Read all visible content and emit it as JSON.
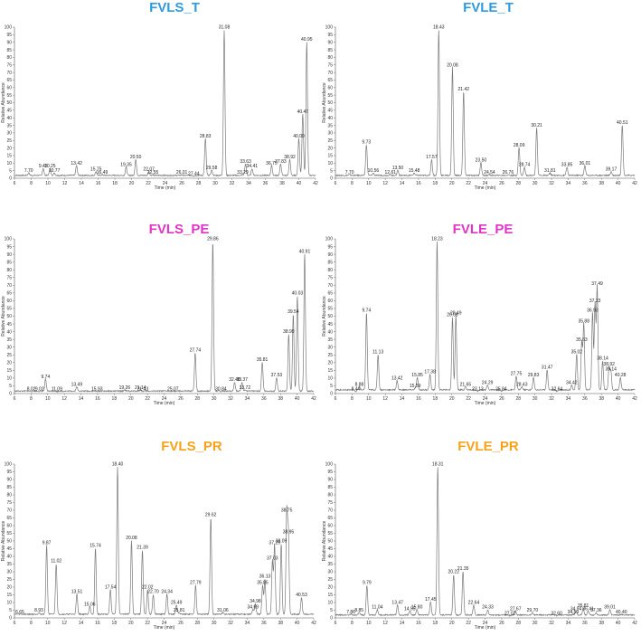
{
  "colors": {
    "blue": "#2f9ae0",
    "magenta": "#e234c8",
    "orange": "#f7a21b",
    "trace": "#7a7a7a",
    "axis": "#555555"
  },
  "chart_data": [
    {
      "type": "line",
      "title": "FVLS_T",
      "title_color": "#2f9ae0",
      "xlabel": "Time (min)",
      "ylabel": "Relative Abundance",
      "xlim": [
        6,
        42
      ],
      "ylim": [
        0,
        100
      ],
      "xticks": [
        6,
        8,
        10,
        12,
        14,
        16,
        18,
        20,
        22,
        24,
        26,
        28,
        30,
        32,
        34,
        36,
        38,
        40,
        42
      ],
      "yticks": [
        0,
        5,
        10,
        15,
        20,
        25,
        30,
        35,
        40,
        45,
        50,
        55,
        60,
        65,
        70,
        75,
        80,
        85,
        90,
        95,
        100
      ],
      "baseline": 1.5,
      "peaks": [
        {
          "label": "7.70",
          "x": 7.7,
          "y": 3
        },
        {
          "label": "9.43",
          "x": 9.43,
          "y": 6
        },
        {
          "label": "10.25",
          "x": 10.25,
          "y": 6
        },
        {
          "label": "10.77",
          "x": 10.77,
          "y": 3
        },
        {
          "label": "13.42",
          "x": 13.42,
          "y": 8
        },
        {
          "label": "15.75",
          "x": 15.75,
          "y": 4
        },
        {
          "label": "16.49",
          "x": 16.49,
          "y": 2
        },
        {
          "label": "19.35",
          "x": 19.35,
          "y": 7
        },
        {
          "label": "20.50",
          "x": 20.5,
          "y": 12
        },
        {
          "label": "22.07",
          "x": 22.07,
          "y": 4
        },
        {
          "label": "22.55",
          "x": 22.55,
          "y": 2
        },
        {
          "label": "26.01",
          "x": 26.01,
          "y": 2
        },
        {
          "label": "27.44",
          "x": 27.44,
          "y": 1
        },
        {
          "label": "28.83",
          "x": 28.83,
          "y": 26
        },
        {
          "label": "29.58",
          "x": 29.58,
          "y": 5
        },
        {
          "label": "31.08",
          "x": 31.08,
          "y": 98
        },
        {
          "label": "33.29",
          "x": 33.29,
          "y": 2
        },
        {
          "label": "33.63",
          "x": 33.63,
          "y": 9
        },
        {
          "label": "34.41",
          "x": 34.41,
          "y": 6
        },
        {
          "label": "36.75",
          "x": 36.75,
          "y": 8
        },
        {
          "label": "37.83",
          "x": 37.83,
          "y": 9
        },
        {
          "label": "38.92",
          "x": 38.92,
          "y": 12
        },
        {
          "label": "40.00",
          "x": 40.0,
          "y": 26
        },
        {
          "label": "40.47",
          "x": 40.47,
          "y": 42
        },
        {
          "label": "40.95",
          "x": 40.95,
          "y": 90
        }
      ]
    },
    {
      "type": "line",
      "title": "FVLE_T",
      "title_color": "#2f9ae0",
      "xlabel": "Time (min)",
      "ylabel": "Relative Abundance",
      "xlim": [
        6,
        42
      ],
      "ylim": [
        0,
        100
      ],
      "xticks": [
        6,
        8,
        10,
        12,
        14,
        16,
        18,
        20,
        22,
        24,
        26,
        28,
        30,
        32,
        34,
        36,
        38,
        40,
        42
      ],
      "yticks": [
        0,
        5,
        10,
        15,
        20,
        25,
        30,
        35,
        40,
        45,
        50,
        55,
        60,
        65,
        70,
        75,
        80,
        85,
        90,
        95,
        100
      ],
      "baseline": 1.5,
      "peaks": [
        {
          "label": "7.70",
          "x": 7.7,
          "y": 2
        },
        {
          "label": "9.73",
          "x": 9.73,
          "y": 22
        },
        {
          "label": "10.56",
          "x": 10.56,
          "y": 3
        },
        {
          "label": "12.61",
          "x": 12.61,
          "y": 2
        },
        {
          "label": "13.50",
          "x": 13.5,
          "y": 5
        },
        {
          "label": "15.48",
          "x": 15.48,
          "y": 3
        },
        {
          "label": "17.57",
          "x": 17.57,
          "y": 12
        },
        {
          "label": "18.43",
          "x": 18.43,
          "y": 98
        },
        {
          "label": "20.08",
          "x": 20.08,
          "y": 73
        },
        {
          "label": "21.42",
          "x": 21.42,
          "y": 57
        },
        {
          "label": "23.50",
          "x": 23.5,
          "y": 10
        },
        {
          "label": "24.54",
          "x": 24.54,
          "y": 2
        },
        {
          "label": "26.76",
          "x": 26.76,
          "y": 2
        },
        {
          "label": "28.09",
          "x": 28.09,
          "y": 20
        },
        {
          "label": "28.74",
          "x": 28.74,
          "y": 7
        },
        {
          "label": "30.21",
          "x": 30.21,
          "y": 33
        },
        {
          "label": "31.81",
          "x": 31.81,
          "y": 3
        },
        {
          "label": "33.85",
          "x": 33.85,
          "y": 7
        },
        {
          "label": "36.01",
          "x": 36.01,
          "y": 8
        },
        {
          "label": "39.17",
          "x": 39.17,
          "y": 4
        },
        {
          "label": "40.51",
          "x": 40.51,
          "y": 35
        }
      ]
    },
    {
      "type": "line",
      "title": "FVLS_PE",
      "title_color": "#e234c8",
      "xlabel": "Time (min)",
      "ylabel": "Relative Abundance",
      "xlim": [
        6,
        42
      ],
      "ylim": [
        0,
        100
      ],
      "xticks": [
        6,
        8,
        10,
        12,
        14,
        16,
        18,
        20,
        22,
        24,
        26,
        28,
        30,
        32,
        34,
        36,
        38,
        40,
        42
      ],
      "yticks": [
        0,
        5,
        10,
        15,
        20,
        25,
        30,
        35,
        40,
        45,
        50,
        55,
        60,
        65,
        70,
        75,
        80,
        85,
        90,
        95,
        100
      ],
      "baseline": 1.2,
      "peaks": [
        {
          "label": "8.02",
          "x": 8.02,
          "y": 1
        },
        {
          "label": "9.02",
          "x": 9.02,
          "y": 1
        },
        {
          "label": "9.74",
          "x": 9.74,
          "y": 9
        },
        {
          "label": "11.09",
          "x": 11.09,
          "y": 1
        },
        {
          "label": "13.49",
          "x": 13.49,
          "y": 4
        },
        {
          "label": "15.93",
          "x": 15.93,
          "y": 1
        },
        {
          "label": "19.26",
          "x": 19.26,
          "y": 2
        },
        {
          "label": "21.14",
          "x": 21.14,
          "y": 2
        },
        {
          "label": "21.43",
          "x": 21.43,
          "y": 1
        },
        {
          "label": "25.07",
          "x": 25.07,
          "y": 1
        },
        {
          "label": "27.74",
          "x": 27.74,
          "y": 26
        },
        {
          "label": "29.86",
          "x": 29.86,
          "y": 98
        },
        {
          "label": "30.84",
          "x": 30.84,
          "y": 1
        },
        {
          "label": "32.48",
          "x": 32.48,
          "y": 7
        },
        {
          "label": "33.37",
          "x": 33.37,
          "y": 7
        },
        {
          "label": "33.72",
          "x": 33.72,
          "y": 2
        },
        {
          "label": "35.81",
          "x": 35.81,
          "y": 20
        },
        {
          "label": "37.53",
          "x": 37.53,
          "y": 10
        },
        {
          "label": "38.99",
          "x": 38.99,
          "y": 38
        },
        {
          "label": "39.54",
          "x": 39.54,
          "y": 51
        },
        {
          "label": "40.03",
          "x": 40.03,
          "y": 63
        },
        {
          "label": "40.91",
          "x": 40.91,
          "y": 90
        }
      ]
    },
    {
      "type": "line",
      "title": "FVLE_PE",
      "title_color": "#e234c8",
      "xlabel": "Time (min)",
      "ylabel": "Relative Abundance",
      "xlim": [
        6,
        42
      ],
      "ylim": [
        0,
        100
      ],
      "xticks": [
        6,
        8,
        10,
        12,
        14,
        16,
        18,
        20,
        22,
        24,
        26,
        28,
        30,
        32,
        34,
        36,
        38,
        40,
        42
      ],
      "yticks": [
        0,
        5,
        10,
        15,
        20,
        25,
        30,
        35,
        40,
        45,
        50,
        55,
        60,
        65,
        70,
        75,
        80,
        85,
        90,
        95,
        100
      ],
      "baseline": 2,
      "peaks": [
        {
          "label": "8.44",
          "x": 8.44,
          "y": 1
        },
        {
          "label": "8.88",
          "x": 8.88,
          "y": 4
        },
        {
          "label": "9.74",
          "x": 9.74,
          "y": 52
        },
        {
          "label": "11.13",
          "x": 11.13,
          "y": 25
        },
        {
          "label": "13.42",
          "x": 13.42,
          "y": 8
        },
        {
          "label": "15.59",
          "x": 15.59,
          "y": 3
        },
        {
          "label": "15.85",
          "x": 15.85,
          "y": 10
        },
        {
          "label": "17.38",
          "x": 17.38,
          "y": 12
        },
        {
          "label": "18.23",
          "x": 18.23,
          "y": 98
        },
        {
          "label": "20.08",
          "x": 20.08,
          "y": 49
        },
        {
          "label": "20.49",
          "x": 20.49,
          "y": 50
        },
        {
          "label": "21.65",
          "x": 21.65,
          "y": 4
        },
        {
          "label": "23.12",
          "x": 23.12,
          "y": 1
        },
        {
          "label": "24.29",
          "x": 24.29,
          "y": 5
        },
        {
          "label": "25.94",
          "x": 25.94,
          "y": 1
        },
        {
          "label": "27.75",
          "x": 27.75,
          "y": 11
        },
        {
          "label": "28.43",
          "x": 28.43,
          "y": 4
        },
        {
          "label": "29.83",
          "x": 29.83,
          "y": 10
        },
        {
          "label": "31.47",
          "x": 31.47,
          "y": 15
        },
        {
          "label": "32.64",
          "x": 32.64,
          "y": 1
        },
        {
          "label": "34.42",
          "x": 34.42,
          "y": 5
        },
        {
          "label": "35.02",
          "x": 35.02,
          "y": 25
        },
        {
          "label": "35.63",
          "x": 35.63,
          "y": 33
        },
        {
          "label": "35.88",
          "x": 35.88,
          "y": 45
        },
        {
          "label": "36.93",
          "x": 36.93,
          "y": 52
        },
        {
          "label": "37.23",
          "x": 37.23,
          "y": 58
        },
        {
          "label": "37.49",
          "x": 37.49,
          "y": 69
        },
        {
          "label": "38.14",
          "x": 38.14,
          "y": 21
        },
        {
          "label": "38.92",
          "x": 38.92,
          "y": 17
        },
        {
          "label": "39.14",
          "x": 39.14,
          "y": 14
        },
        {
          "label": "40.28",
          "x": 40.28,
          "y": 10
        }
      ]
    },
    {
      "type": "line",
      "title": "FVLS_PR",
      "title_color": "#f7a21b",
      "xlabel": "Time (min)",
      "ylabel": "Relative Abundance",
      "xlim": [
        6,
        42
      ],
      "ylim": [
        0,
        100
      ],
      "xticks": [
        6,
        8,
        10,
        12,
        14,
        16,
        18,
        20,
        22,
        24,
        26,
        28,
        30,
        32,
        34,
        36,
        38,
        40,
        42
      ],
      "yticks": [
        0,
        5,
        10,
        15,
        20,
        25,
        30,
        35,
        40,
        45,
        50,
        55,
        60,
        65,
        70,
        75,
        80,
        85,
        90,
        95,
        100
      ],
      "baseline": 2,
      "peaks": [
        {
          "label": "6.65",
          "x": 6.65,
          "y": 2
        },
        {
          "label": "8.93",
          "x": 8.93,
          "y": 3
        },
        {
          "label": "9.87",
          "x": 9.87,
          "y": 47
        },
        {
          "label": "11.02",
          "x": 11.02,
          "y": 35
        },
        {
          "label": "13.51",
          "x": 13.51,
          "y": 15
        },
        {
          "label": "15.06",
          "x": 15.06,
          "y": 7
        },
        {
          "label": "15.74",
          "x": 15.74,
          "y": 45
        },
        {
          "label": "17.54",
          "x": 17.54,
          "y": 18
        },
        {
          "label": "18.40",
          "x": 18.4,
          "y": 98
        },
        {
          "label": "20.08",
          "x": 20.08,
          "y": 50
        },
        {
          "label": "21.39",
          "x": 21.39,
          "y": 44
        },
        {
          "label": "22.02",
          "x": 22.02,
          "y": 18
        },
        {
          "label": "22.70",
          "x": 22.7,
          "y": 15
        },
        {
          "label": "24.34",
          "x": 24.34,
          "y": 15
        },
        {
          "label": "25.49",
          "x": 25.49,
          "y": 8
        },
        {
          "label": "25.81",
          "x": 25.81,
          "y": 3
        },
        {
          "label": "27.79",
          "x": 27.79,
          "y": 21
        },
        {
          "label": "29.62",
          "x": 29.62,
          "y": 65
        },
        {
          "label": "31.06",
          "x": 31.06,
          "y": 3
        },
        {
          "label": "34.69",
          "x": 34.69,
          "y": 5
        },
        {
          "label": "34.98",
          "x": 34.98,
          "y": 9
        },
        {
          "label": "35.85",
          "x": 35.85,
          "y": 21
        },
        {
          "label": "36.13",
          "x": 36.13,
          "y": 25
        },
        {
          "label": "37.03",
          "x": 37.03,
          "y": 37
        },
        {
          "label": "37.29",
          "x": 37.29,
          "y": 47
        },
        {
          "label": "38.09",
          "x": 38.09,
          "y": 48
        },
        {
          "label": "38.75",
          "x": 38.75,
          "y": 68
        },
        {
          "label": "38.95",
          "x": 38.95,
          "y": 54
        },
        {
          "label": "40.53",
          "x": 40.53,
          "y": 13
        }
      ]
    },
    {
      "type": "line",
      "title": "FVLE_PR",
      "title_color": "#f7a21b",
      "xlabel": "Time (min)",
      "ylabel": "Relative Abundance",
      "xlim": [
        6,
        42
      ],
      "ylim": [
        0,
        100
      ],
      "xticks": [
        6,
        8,
        10,
        12,
        14,
        16,
        18,
        20,
        22,
        24,
        26,
        28,
        30,
        32,
        34,
        36,
        38,
        40,
        42
      ],
      "yticks": [
        0,
        5,
        10,
        15,
        20,
        25,
        30,
        35,
        40,
        45,
        50,
        55,
        60,
        65,
        70,
        75,
        80,
        85,
        90,
        95,
        100
      ],
      "baseline": 1.5,
      "peaks": [
        {
          "label": "7.86",
          "x": 7.86,
          "y": 2
        },
        {
          "label": "8.85",
          "x": 8.85,
          "y": 3
        },
        {
          "label": "9.79",
          "x": 9.79,
          "y": 21
        },
        {
          "label": "11.04",
          "x": 11.04,
          "y": 5
        },
        {
          "label": "13.47",
          "x": 13.47,
          "y": 8
        },
        {
          "label": "14.95",
          "x": 14.95,
          "y": 4
        },
        {
          "label": "15.80",
          "x": 15.8,
          "y": 5
        },
        {
          "label": "17.45",
          "x": 17.45,
          "y": 10
        },
        {
          "label": "18.31",
          "x": 18.31,
          "y": 98
        },
        {
          "label": "20.22",
          "x": 20.22,
          "y": 28
        },
        {
          "label": "21.35",
          "x": 21.35,
          "y": 30
        },
        {
          "label": "22.64",
          "x": 22.64,
          "y": 8
        },
        {
          "label": "24.33",
          "x": 24.33,
          "y": 5
        },
        {
          "label": "27.02",
          "x": 27.02,
          "y": 1
        },
        {
          "label": "27.67",
          "x": 27.67,
          "y": 4
        },
        {
          "label": "29.70",
          "x": 29.7,
          "y": 3
        },
        {
          "label": "32.60",
          "x": 32.6,
          "y": 1
        },
        {
          "label": "34.59",
          "x": 34.59,
          "y": 2
        },
        {
          "label": "34.94",
          "x": 34.94,
          "y": 4
        },
        {
          "label": "35.81",
          "x": 35.81,
          "y": 6
        },
        {
          "label": "36.41",
          "x": 36.41,
          "y": 4
        },
        {
          "label": "37.36",
          "x": 37.36,
          "y": 3
        },
        {
          "label": "39.01",
          "x": 39.01,
          "y": 5
        },
        {
          "label": "40.40",
          "x": 40.4,
          "y": 2
        }
      ]
    }
  ]
}
